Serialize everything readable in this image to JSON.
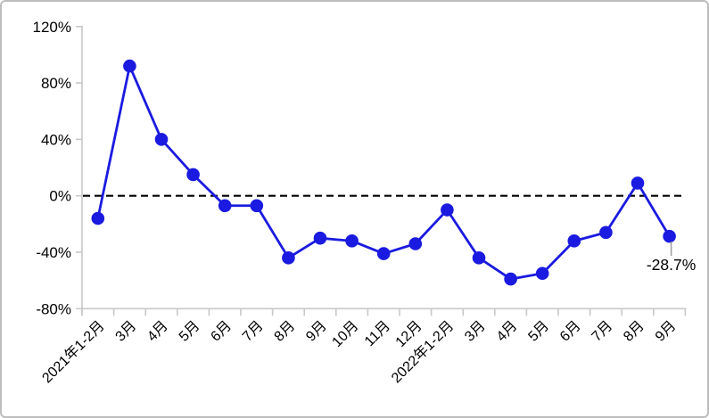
{
  "chart_data": {
    "type": "line",
    "title": "",
    "xlabel": "",
    "ylabel": "",
    "categories": [
      "2021年1-2月",
      "3月",
      "4月",
      "5月",
      "6月",
      "7月",
      "8月",
      "9月",
      "10月",
      "11月",
      "12月",
      "2022年1-2月",
      "3月",
      "4月",
      "5月",
      "6月",
      "7月",
      "8月",
      "9月"
    ],
    "values": [
      -16,
      92,
      40,
      15,
      -7,
      -7,
      -44,
      -30,
      -32,
      -41,
      -34,
      -10,
      -44,
      -59,
      -55,
      -32,
      -26,
      9,
      -28.7
    ],
    "ylim": [
      -80,
      120
    ],
    "yticks": [
      120,
      80,
      40,
      0,
      -40,
      -80
    ],
    "ytick_labels": [
      "120%",
      "80%",
      "40%",
      "0%",
      "-40%",
      "-80%"
    ],
    "grid": false,
    "legend": false,
    "zero_line": {
      "visible": true,
      "style": "dashed",
      "color": "#000000"
    },
    "annotations": [
      {
        "text": "-28.7%",
        "index": 18
      }
    ],
    "colors": {
      "line": "#1a1ae0",
      "marker": "#1a1ae0",
      "axis": "#c8c8c8",
      "tick_text": "#000000",
      "annotation_text": "#000000",
      "annotation_leader": "#9e9e9e"
    }
  }
}
